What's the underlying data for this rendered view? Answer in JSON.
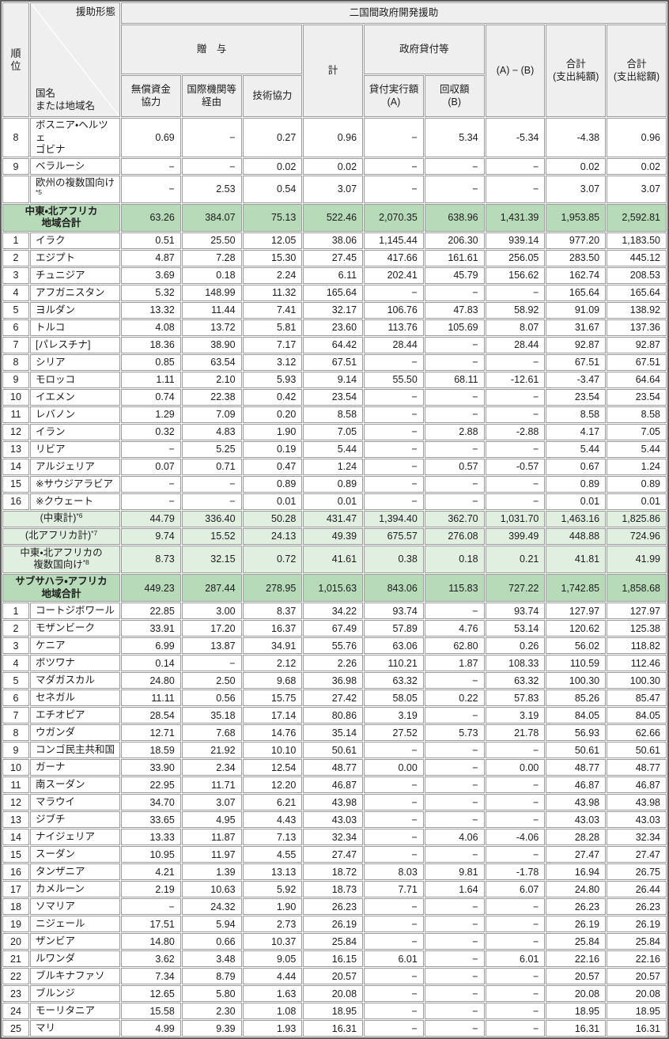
{
  "colors": {
    "header_bg": "#efefef",
    "region_total_bg": "#b7dab8",
    "subtotal_bg": "#e1efe1",
    "grid_border": "#9b9b9b",
    "outer_border": "#5e5e5e",
    "text": "#1c1c1c"
  },
  "header": {
    "rank": "順\n位",
    "aid_form": "援助形態",
    "country": "国名\nまたは地域名",
    "bilateral": "二国間政府開発援助",
    "grants": "贈　与",
    "grant_aid": "無償資金\n協力",
    "intl_org": "国際機関等\n経由",
    "tech_coop": "技術協力",
    "total": "計",
    "gov_loans": "政府貸付等",
    "loan_disbursed": "貸付実行額\n(A)",
    "recovered": "回収額\n(B)",
    "a_minus_b": "(A) − (B)",
    "total_net": "合計\n(支出純額)",
    "total_gross": "合計\n(支出総額)"
  },
  "rows": [
    {
      "style": "normal",
      "rank": "8",
      "name": "ボスニア・ヘルツェ\nゴビナ",
      "sup": "",
      "values": [
        "0.69",
        "−",
        "0.27",
        "0.96",
        "−",
        "5.34",
        "-5.34",
        "-4.38",
        "0.96"
      ]
    },
    {
      "style": "normal",
      "rank": "9",
      "name": "ベラルーシ",
      "sup": "",
      "values": [
        "−",
        "−",
        "0.02",
        "0.02",
        "−",
        "−",
        "−",
        "0.02",
        "0.02"
      ]
    },
    {
      "style": "normal",
      "rank": "",
      "name": "欧州の複数国向け",
      "sup": "*5",
      "values": [
        "−",
        "2.53",
        "0.54",
        "3.07",
        "−",
        "−",
        "−",
        "3.07",
        "3.07"
      ]
    },
    {
      "style": "region",
      "rank": "",
      "name": "中東・北アフリカ\n地域合計",
      "sup": "",
      "values": [
        "63.26",
        "384.07",
        "75.13",
        "522.46",
        "2,070.35",
        "638.96",
        "1,431.39",
        "1,953.85",
        "2,592.81"
      ]
    },
    {
      "style": "normal",
      "rank": "1",
      "name": "イラク",
      "sup": "",
      "values": [
        "0.51",
        "25.50",
        "12.05",
        "38.06",
        "1,145.44",
        "206.30",
        "939.14",
        "977.20",
        "1,183.50"
      ]
    },
    {
      "style": "normal",
      "rank": "2",
      "name": "エジプト",
      "sup": "",
      "values": [
        "4.87",
        "7.28",
        "15.30",
        "27.45",
        "417.66",
        "161.61",
        "256.05",
        "283.50",
        "445.12"
      ]
    },
    {
      "style": "normal",
      "rank": "3",
      "name": "チュニジア",
      "sup": "",
      "values": [
        "3.69",
        "0.18",
        "2.24",
        "6.11",
        "202.41",
        "45.79",
        "156.62",
        "162.74",
        "208.53"
      ]
    },
    {
      "style": "normal",
      "rank": "4",
      "name": "アフガニスタン",
      "sup": "",
      "values": [
        "5.32",
        "148.99",
        "11.32",
        "165.64",
        "−",
        "−",
        "−",
        "165.64",
        "165.64"
      ]
    },
    {
      "style": "normal",
      "rank": "5",
      "name": "ヨルダン",
      "sup": "",
      "values": [
        "13.32",
        "11.44",
        "7.41",
        "32.17",
        "106.76",
        "47.83",
        "58.92",
        "91.09",
        "138.92"
      ]
    },
    {
      "style": "normal",
      "rank": "6",
      "name": "トルコ",
      "sup": "",
      "values": [
        "4.08",
        "13.72",
        "5.81",
        "23.60",
        "113.76",
        "105.69",
        "8.07",
        "31.67",
        "137.36"
      ]
    },
    {
      "style": "normal",
      "rank": "7",
      "name": "[パレスチナ]",
      "sup": "",
      "values": [
        "18.36",
        "38.90",
        "7.17",
        "64.42",
        "28.44",
        "−",
        "28.44",
        "92.87",
        "92.87"
      ]
    },
    {
      "style": "normal",
      "rank": "8",
      "name": "シリア",
      "sup": "",
      "values": [
        "0.85",
        "63.54",
        "3.12",
        "67.51",
        "−",
        "−",
        "−",
        "67.51",
        "67.51"
      ]
    },
    {
      "style": "normal",
      "rank": "9",
      "name": "モロッコ",
      "sup": "",
      "values": [
        "1.11",
        "2.10",
        "5.93",
        "9.14",
        "55.50",
        "68.11",
        "-12.61",
        "-3.47",
        "64.64"
      ]
    },
    {
      "style": "normal",
      "rank": "10",
      "name": "イエメン",
      "sup": "",
      "values": [
        "0.74",
        "22.38",
        "0.42",
        "23.54",
        "−",
        "−",
        "−",
        "23.54",
        "23.54"
      ]
    },
    {
      "style": "normal",
      "rank": "11",
      "name": "レバノン",
      "sup": "",
      "values": [
        "1.29",
        "7.09",
        "0.20",
        "8.58",
        "−",
        "−",
        "−",
        "8.58",
        "8.58"
      ]
    },
    {
      "style": "normal",
      "rank": "12",
      "name": "イラン",
      "sup": "",
      "values": [
        "0.32",
        "4.83",
        "1.90",
        "7.05",
        "−",
        "2.88",
        "-2.88",
        "4.17",
        "7.05"
      ]
    },
    {
      "style": "normal",
      "rank": "13",
      "name": "リビア",
      "sup": "",
      "values": [
        "−",
        "5.25",
        "0.19",
        "5.44",
        "−",
        "−",
        "−",
        "5.44",
        "5.44"
      ]
    },
    {
      "style": "normal",
      "rank": "14",
      "name": "アルジェリア",
      "sup": "",
      "values": [
        "0.07",
        "0.71",
        "0.47",
        "1.24",
        "−",
        "0.57",
        "-0.57",
        "0.67",
        "1.24"
      ]
    },
    {
      "style": "normal",
      "rank": "15",
      "name": "※サウジアラビア",
      "sup": "",
      "values": [
        "−",
        "−",
        "0.89",
        "0.89",
        "−",
        "−",
        "−",
        "0.89",
        "0.89"
      ]
    },
    {
      "style": "normal",
      "rank": "16",
      "name": "※クウェート",
      "sup": "",
      "values": [
        "−",
        "−",
        "0.01",
        "0.01",
        "−",
        "−",
        "−",
        "0.01",
        "0.01"
      ]
    },
    {
      "style": "sub",
      "rank": "",
      "name": "(中東計)",
      "sup": "*6",
      "values": [
        "44.79",
        "336.40",
        "50.28",
        "431.47",
        "1,394.40",
        "362.70",
        "1,031.70",
        "1,463.16",
        "1,825.86"
      ]
    },
    {
      "style": "sub",
      "rank": "",
      "name": "(北アフリカ計)",
      "sup": "*7",
      "values": [
        "9.74",
        "15.52",
        "24.13",
        "49.39",
        "675.57",
        "276.08",
        "399.49",
        "448.88",
        "724.96"
      ]
    },
    {
      "style": "sub",
      "rank": "",
      "name": "中東・北アフリカの\n複数国向け",
      "sup": "*8",
      "values": [
        "8.73",
        "32.15",
        "0.72",
        "41.61",
        "0.38",
        "0.18",
        "0.21",
        "41.81",
        "41.99"
      ]
    },
    {
      "style": "region",
      "rank": "",
      "name": "サブサハラ・アフリカ\n地域合計",
      "sup": "",
      "values": [
        "449.23",
        "287.44",
        "278.95",
        "1,015.63",
        "843.06",
        "115.83",
        "727.22",
        "1,742.85",
        "1,858.68"
      ]
    },
    {
      "style": "normal",
      "rank": "1",
      "name": "コートジボワール",
      "sup": "",
      "values": [
        "22.85",
        "3.00",
        "8.37",
        "34.22",
        "93.74",
        "−",
        "93.74",
        "127.97",
        "127.97"
      ]
    },
    {
      "style": "normal",
      "rank": "2",
      "name": "モザンビーク",
      "sup": "",
      "values": [
        "33.91",
        "17.20",
        "16.37",
        "67.49",
        "57.89",
        "4.76",
        "53.14",
        "120.62",
        "125.38"
      ]
    },
    {
      "style": "normal",
      "rank": "3",
      "name": "ケニア",
      "sup": "",
      "values": [
        "6.99",
        "13.87",
        "34.91",
        "55.76",
        "63.06",
        "62.80",
        "0.26",
        "56.02",
        "118.82"
      ]
    },
    {
      "style": "normal",
      "rank": "4",
      "name": "ボツワナ",
      "sup": "",
      "values": [
        "0.14",
        "−",
        "2.12",
        "2.26",
        "110.21",
        "1.87",
        "108.33",
        "110.59",
        "112.46"
      ]
    },
    {
      "style": "normal",
      "rank": "5",
      "name": "マダガスカル",
      "sup": "",
      "values": [
        "24.80",
        "2.50",
        "9.68",
        "36.98",
        "63.32",
        "−",
        "63.32",
        "100.30",
        "100.30"
      ]
    },
    {
      "style": "normal",
      "rank": "6",
      "name": "セネガル",
      "sup": "",
      "values": [
        "11.11",
        "0.56",
        "15.75",
        "27.42",
        "58.05",
        "0.22",
        "57.83",
        "85.26",
        "85.47"
      ]
    },
    {
      "style": "normal",
      "rank": "7",
      "name": "エチオピア",
      "sup": "",
      "values": [
        "28.54",
        "35.18",
        "17.14",
        "80.86",
        "3.19",
        "−",
        "3.19",
        "84.05",
        "84.05"
      ]
    },
    {
      "style": "normal",
      "rank": "8",
      "name": "ウガンダ",
      "sup": "",
      "values": [
        "12.71",
        "7.68",
        "14.76",
        "35.14",
        "27.52",
        "5.73",
        "21.78",
        "56.93",
        "62.66"
      ]
    },
    {
      "style": "normal",
      "rank": "9",
      "name": "コンゴ民主共和国",
      "sup": "",
      "values": [
        "18.59",
        "21.92",
        "10.10",
        "50.61",
        "−",
        "−",
        "−",
        "50.61",
        "50.61"
      ]
    },
    {
      "style": "normal",
      "rank": "10",
      "name": "ガーナ",
      "sup": "",
      "values": [
        "33.90",
        "2.34",
        "12.54",
        "48.77",
        "0.00",
        "−",
        "0.00",
        "48.77",
        "48.77"
      ]
    },
    {
      "style": "normal",
      "rank": "11",
      "name": "南スーダン",
      "sup": "",
      "values": [
        "22.95",
        "11.71",
        "12.20",
        "46.87",
        "−",
        "−",
        "−",
        "46.87",
        "46.87"
      ]
    },
    {
      "style": "normal",
      "rank": "12",
      "name": "マラウイ",
      "sup": "",
      "values": [
        "34.70",
        "3.07",
        "6.21",
        "43.98",
        "−",
        "−",
        "−",
        "43.98",
        "43.98"
      ]
    },
    {
      "style": "normal",
      "rank": "13",
      "name": "ジブチ",
      "sup": "",
      "values": [
        "33.65",
        "4.95",
        "4.43",
        "43.03",
        "−",
        "−",
        "−",
        "43.03",
        "43.03"
      ]
    },
    {
      "style": "normal",
      "rank": "14",
      "name": "ナイジェリア",
      "sup": "",
      "values": [
        "13.33",
        "11.87",
        "7.13",
        "32.34",
        "−",
        "4.06",
        "-4.06",
        "28.28",
        "32.34"
      ]
    },
    {
      "style": "normal",
      "rank": "15",
      "name": "スーダン",
      "sup": "",
      "values": [
        "10.95",
        "11.97",
        "4.55",
        "27.47",
        "−",
        "−",
        "−",
        "27.47",
        "27.47"
      ]
    },
    {
      "style": "normal",
      "rank": "16",
      "name": "タンザニア",
      "sup": "",
      "values": [
        "4.21",
        "1.39",
        "13.13",
        "18.72",
        "8.03",
        "9.81",
        "-1.78",
        "16.94",
        "26.75"
      ]
    },
    {
      "style": "normal",
      "rank": "17",
      "name": "カメルーン",
      "sup": "",
      "values": [
        "2.19",
        "10.63",
        "5.92",
        "18.73",
        "7.71",
        "1.64",
        "6.07",
        "24.80",
        "26.44"
      ]
    },
    {
      "style": "normal",
      "rank": "18",
      "name": "ソマリア",
      "sup": "",
      "values": [
        "−",
        "24.32",
        "1.90",
        "26.23",
        "−",
        "−",
        "−",
        "26.23",
        "26.23"
      ]
    },
    {
      "style": "normal",
      "rank": "19",
      "name": "ニジェール",
      "sup": "",
      "values": [
        "17.51",
        "5.94",
        "2.73",
        "26.19",
        "−",
        "−",
        "−",
        "26.19",
        "26.19"
      ]
    },
    {
      "style": "normal",
      "rank": "20",
      "name": "ザンビア",
      "sup": "",
      "values": [
        "14.80",
        "0.66",
        "10.37",
        "25.84",
        "−",
        "−",
        "−",
        "25.84",
        "25.84"
      ]
    },
    {
      "style": "normal",
      "rank": "21",
      "name": "ルワンダ",
      "sup": "",
      "values": [
        "3.62",
        "3.48",
        "9.05",
        "16.15",
        "6.01",
        "−",
        "6.01",
        "22.16",
        "22.16"
      ]
    },
    {
      "style": "normal",
      "rank": "22",
      "name": "ブルキナファソ",
      "sup": "",
      "values": [
        "7.34",
        "8.79",
        "4.44",
        "20.57",
        "−",
        "−",
        "−",
        "20.57",
        "20.57"
      ]
    },
    {
      "style": "normal",
      "rank": "23",
      "name": "ブルンジ",
      "sup": "",
      "values": [
        "12.65",
        "5.80",
        "1.63",
        "20.08",
        "−",
        "−",
        "−",
        "20.08",
        "20.08"
      ]
    },
    {
      "style": "normal",
      "rank": "24",
      "name": "モーリタニア",
      "sup": "",
      "values": [
        "15.58",
        "2.30",
        "1.08",
        "18.95",
        "−",
        "−",
        "−",
        "18.95",
        "18.95"
      ]
    },
    {
      "style": "normal",
      "rank": "25",
      "name": "マリ",
      "sup": "",
      "values": [
        "4.99",
        "9.39",
        "1.93",
        "16.31",
        "−",
        "−",
        "−",
        "16.31",
        "16.31"
      ]
    }
  ]
}
